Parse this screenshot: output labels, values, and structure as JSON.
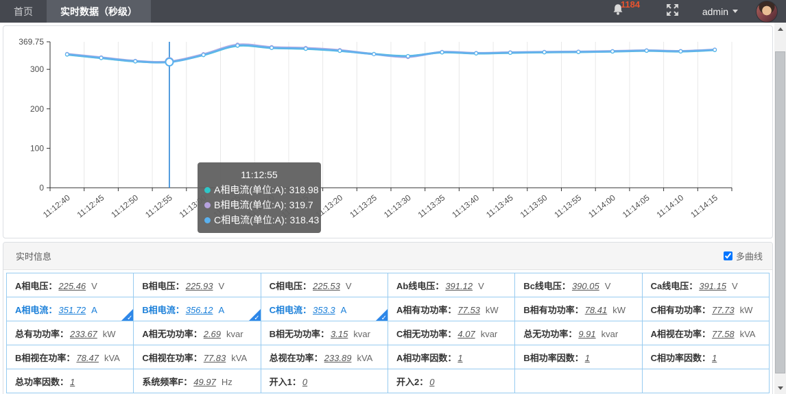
{
  "topbar": {
    "tabs": [
      {
        "label": "首页",
        "active": false
      },
      {
        "label": "实时数据（秒级）",
        "active": true
      }
    ],
    "notification_count": "1184",
    "user_label": "admin"
  },
  "chart_data": {
    "type": "line",
    "x": [
      "11:12:40",
      "11:12:45",
      "11:12:50",
      "11:12:55",
      "11:13:00",
      "11:13:05",
      "11:13:10",
      "11:13:15",
      "11:13:20",
      "11:13:25",
      "11:13:30",
      "11:13:35",
      "11:13:40",
      "11:13:45",
      "11:13:50",
      "11:13:55",
      "11:14:00",
      "11:14:05",
      "11:14:10",
      "11:14:15"
    ],
    "series": [
      {
        "name": "A相电流(单位:A)",
        "color": "#2ec7c9",
        "values": [
          337.5,
          328.6,
          320.1,
          318.98,
          336.2,
          359.8,
          354.1,
          352.0,
          346.8,
          338.9,
          333.6,
          342.9,
          340.2,
          341.8,
          343.1,
          343.8,
          345.0,
          346.9,
          345.2,
          348.9
        ]
      },
      {
        "name": "B相电流(单位:A)",
        "color": "#b6a2de",
        "values": [
          339.0,
          330.2,
          321.3,
          319.7,
          338.4,
          362.6,
          356.3,
          354.2,
          348.7,
          338.6,
          331.2,
          344.1,
          341.3,
          343.0,
          344.2,
          344.9,
          346.1,
          348.0,
          346.3,
          350.1
        ]
      },
      {
        "name": "C相电流(单位:A)",
        "color": "#5ab1ef",
        "values": [
          337.9,
          329.0,
          320.5,
          318.43,
          336.6,
          360.4,
          354.6,
          352.4,
          347.2,
          338.4,
          333.1,
          343.3,
          340.6,
          342.2,
          343.5,
          344.2,
          345.4,
          347.3,
          345.6,
          349.4
        ]
      }
    ],
    "ylim": [
      0,
      369.75
    ],
    "yticks": [
      0,
      100,
      200,
      300,
      369.75
    ],
    "grid": "vertical",
    "hover": {
      "index": 3,
      "time": "11:12:55"
    }
  },
  "tooltip": {
    "title": "11:12:55",
    "items": [
      {
        "label": "A相电流(单位:A)",
        "value": "318.98",
        "color": "#2ec7c9"
      },
      {
        "label": "B相电流(单位:A)",
        "value": "319.7",
        "color": "#b6a2de"
      },
      {
        "label": "C相电流(单位:A)",
        "value": "318.43",
        "color": "#5ab1ef"
      }
    ]
  },
  "panel": {
    "title": "实时信息",
    "checkbox_label": "多曲线",
    "checkbox_checked": true
  },
  "table": {
    "rows": [
      [
        {
          "label": "A相电压",
          "value": "225.46",
          "unit": "V",
          "selected": false
        },
        {
          "label": "B相电压",
          "value": "225.93",
          "unit": "V",
          "selected": false
        },
        {
          "label": "C相电压",
          "value": "225.53",
          "unit": "V",
          "selected": false
        },
        {
          "label": "Ab线电压",
          "value": "391.12",
          "unit": "V",
          "selected": false
        },
        {
          "label": "Bc线电压",
          "value": "390.05",
          "unit": "V",
          "selected": false
        },
        {
          "label": "Ca线电压",
          "value": "391.15",
          "unit": "V",
          "selected": false
        }
      ],
      [
        {
          "label": "A相电流",
          "value": "351.72",
          "unit": "A",
          "selected": true
        },
        {
          "label": "B相电流",
          "value": "356.12",
          "unit": "A",
          "selected": true
        },
        {
          "label": "C相电流",
          "value": "353.3",
          "unit": "A",
          "selected": true
        },
        {
          "label": "A相有功功率",
          "value": "77.53",
          "unit": "kW",
          "selected": false
        },
        {
          "label": "B相有功功率",
          "value": "78.41",
          "unit": "kW",
          "selected": false
        },
        {
          "label": "C相有功功率",
          "value": "77.73",
          "unit": "kW",
          "selected": false
        }
      ],
      [
        {
          "label": "总有功功率",
          "value": "233.67",
          "unit": "kW",
          "selected": false
        },
        {
          "label": "A相无功功率",
          "value": "2.69",
          "unit": "kvar",
          "selected": false
        },
        {
          "label": "B相无功功率",
          "value": "3.15",
          "unit": "kvar",
          "selected": false
        },
        {
          "label": "C相无功功率",
          "value": "4.07",
          "unit": "kvar",
          "selected": false
        },
        {
          "label": "总无功功率",
          "value": "9.91",
          "unit": "kvar",
          "selected": false
        },
        {
          "label": "A相视在功率",
          "value": "77.58",
          "unit": "kVA",
          "selected": false
        }
      ],
      [
        {
          "label": "B相视在功率",
          "value": "78.47",
          "unit": "kVA",
          "selected": false
        },
        {
          "label": "C相视在功率",
          "value": "77.83",
          "unit": "kVA",
          "selected": false
        },
        {
          "label": "总视在功率",
          "value": "233.89",
          "unit": "kVA",
          "selected": false
        },
        {
          "label": "A相功率因数",
          "value": "1",
          "unit": "",
          "selected": false
        },
        {
          "label": "B相功率因数",
          "value": "1",
          "unit": "",
          "selected": false
        },
        {
          "label": "C相功率因数",
          "value": "1",
          "unit": "",
          "selected": false
        }
      ],
      [
        {
          "label": "总功率因数",
          "value": "1",
          "unit": "",
          "selected": false
        },
        {
          "label": "系统频率F",
          "value": "49.97",
          "unit": "Hz",
          "selected": false
        },
        {
          "label": "开入1",
          "value": "0",
          "unit": "",
          "selected": false
        },
        {
          "label": "开入2",
          "value": "0",
          "unit": "",
          "selected": false
        },
        null,
        null
      ]
    ]
  }
}
